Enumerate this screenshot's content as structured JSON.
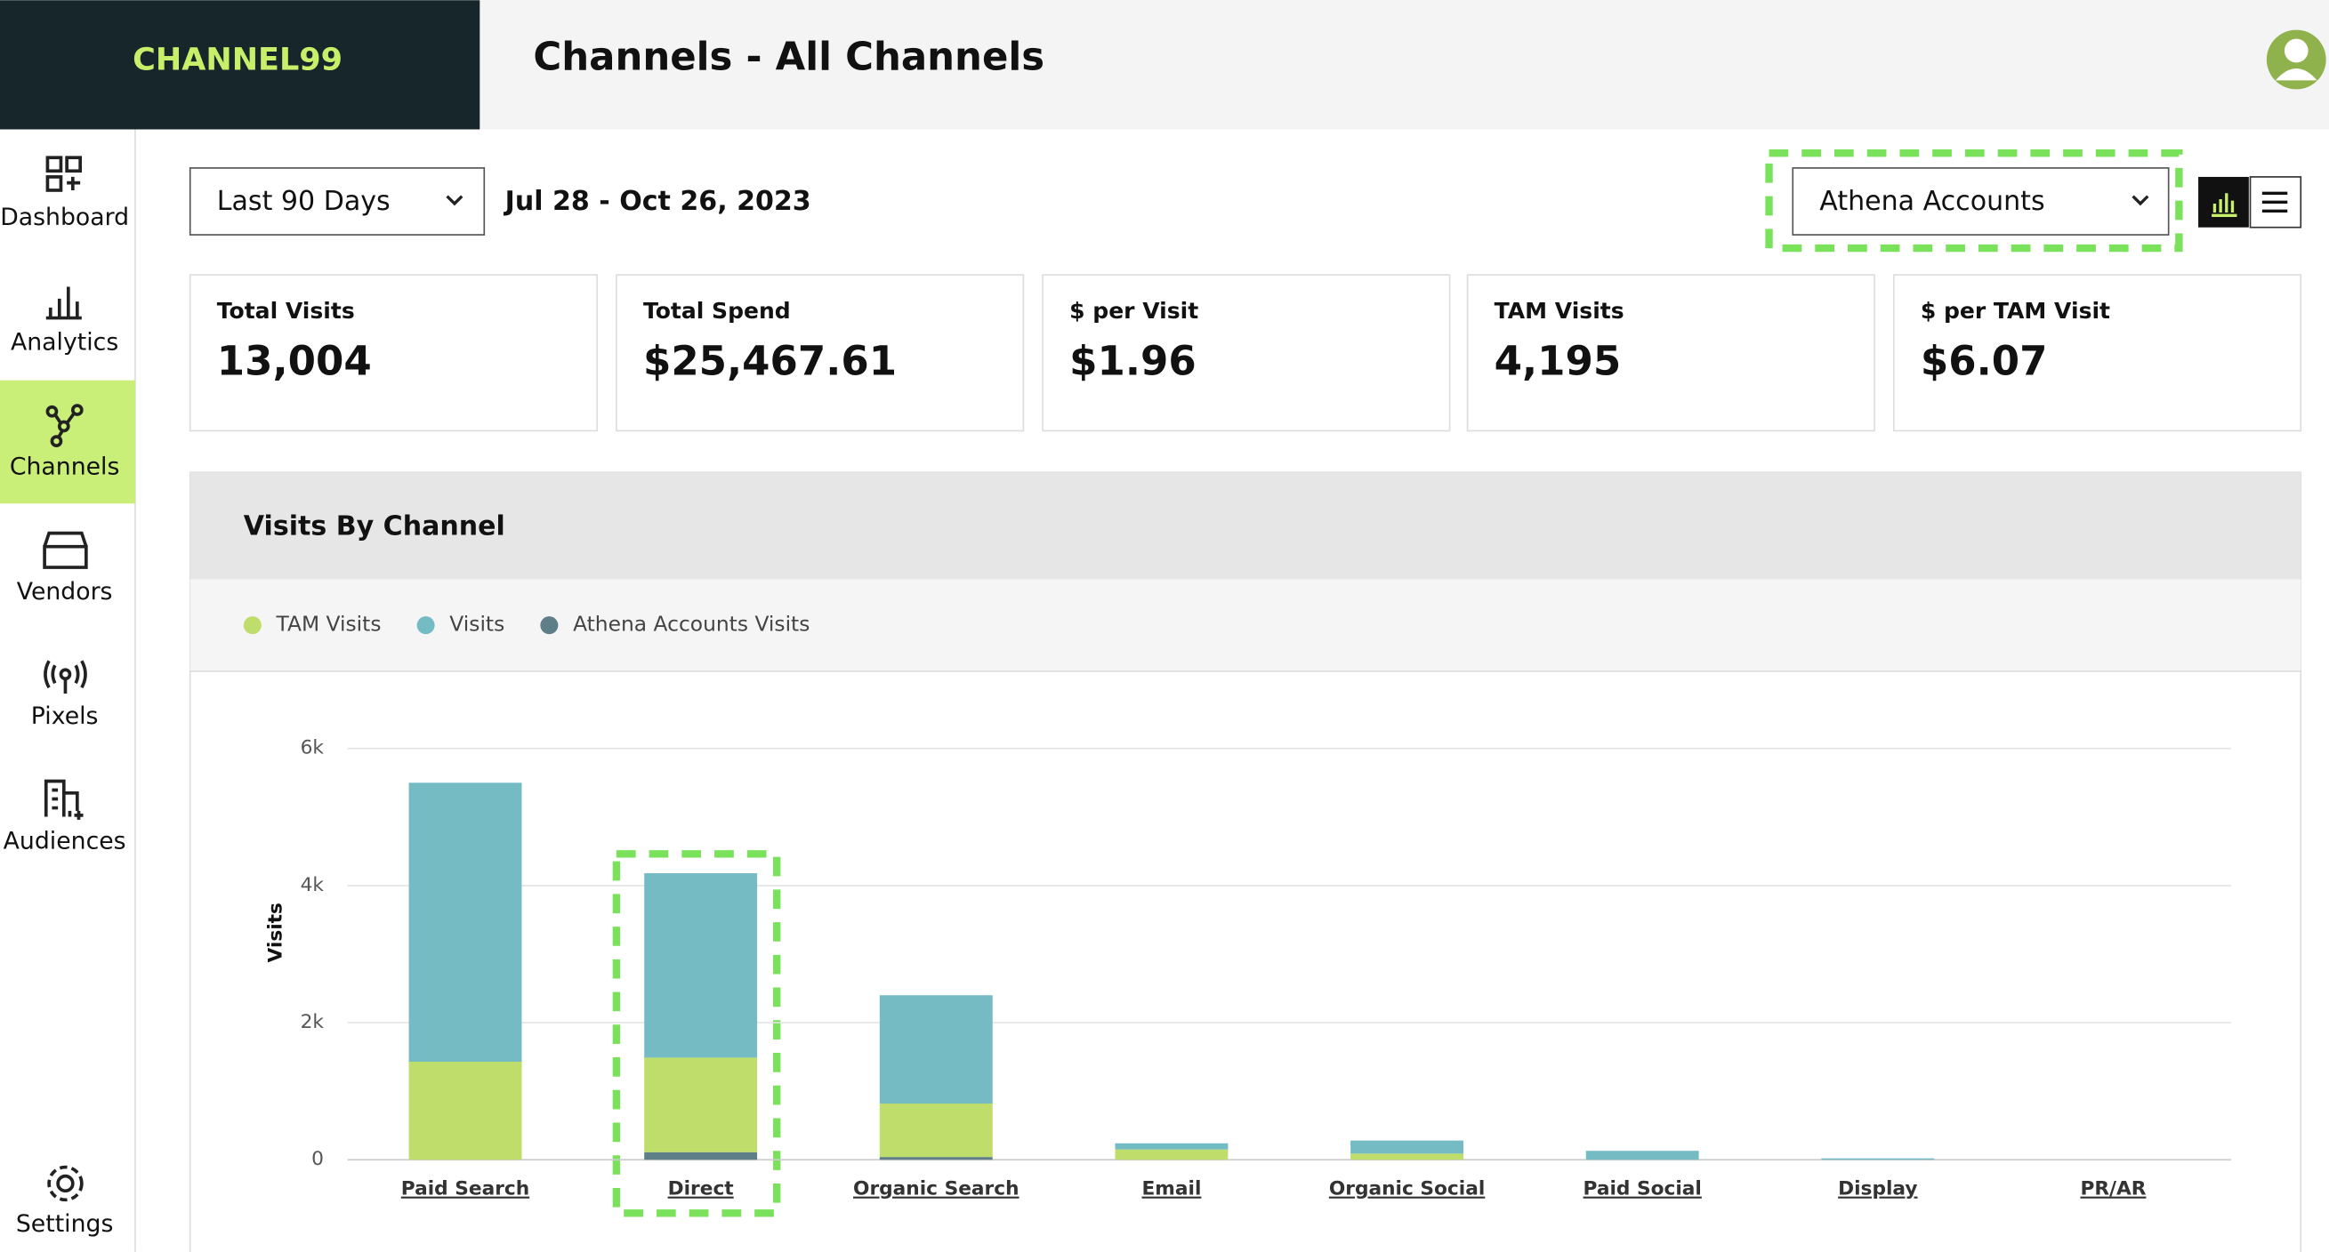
{
  "header": {
    "logo": "CHANNEL99",
    "title": "Channels - All Channels"
  },
  "nav": [
    "Dashboard",
    "Analytics",
    "Channels",
    "Vendors",
    "Pixels",
    "Audiences",
    "Settings"
  ],
  "filters": {
    "date_preset": "Last 90 Days",
    "date_range": "Jul 28 - Oct 26, 2023",
    "account_filter": "Athena Accounts"
  },
  "kpis": [
    {
      "label": "Total Visits",
      "value": "13,004"
    },
    {
      "label": "Total Spend",
      "value": "$25,467.61"
    },
    {
      "label": "$ per Visit",
      "value": "$1.96"
    },
    {
      "label": "TAM Visits",
      "value": "4,195"
    },
    {
      "label": "$ per TAM Visit",
      "value": "$6.07"
    }
  ],
  "chart_data": {
    "type": "bar",
    "stacked": true,
    "title": "Visits By Channel",
    "ylabel": "Visits",
    "categories": [
      "Paid Search",
      "Direct",
      "Organic Search",
      "Email",
      "Organic Social",
      "Paid Social",
      "Display",
      "PR/AR"
    ],
    "series": [
      {
        "name": "Athena Accounts Visits",
        "color": "#5e7e88",
        "values": [
          0,
          110,
          40,
          0,
          0,
          0,
          0,
          0
        ]
      },
      {
        "name": "TAM Visits",
        "color": "#bedd6a",
        "values": [
          1430,
          1380,
          780,
          150,
          90,
          0,
          0,
          0
        ]
      },
      {
        "name": "Visits",
        "color": "#74bbc4",
        "values": [
          4070,
          2690,
          1580,
          90,
          190,
          130,
          20,
          0
        ]
      }
    ],
    "legend_order": [
      "TAM Visits",
      "Visits",
      "Athena Accounts Visits"
    ],
    "ylim": [
      0,
      6000
    ],
    "yticks": [
      0,
      {
        "value": 2000,
        "label": "2k"
      },
      {
        "value": 4000,
        "label": "4k"
      },
      {
        "value": 6000,
        "label": "6k"
      }
    ],
    "grid": true
  }
}
